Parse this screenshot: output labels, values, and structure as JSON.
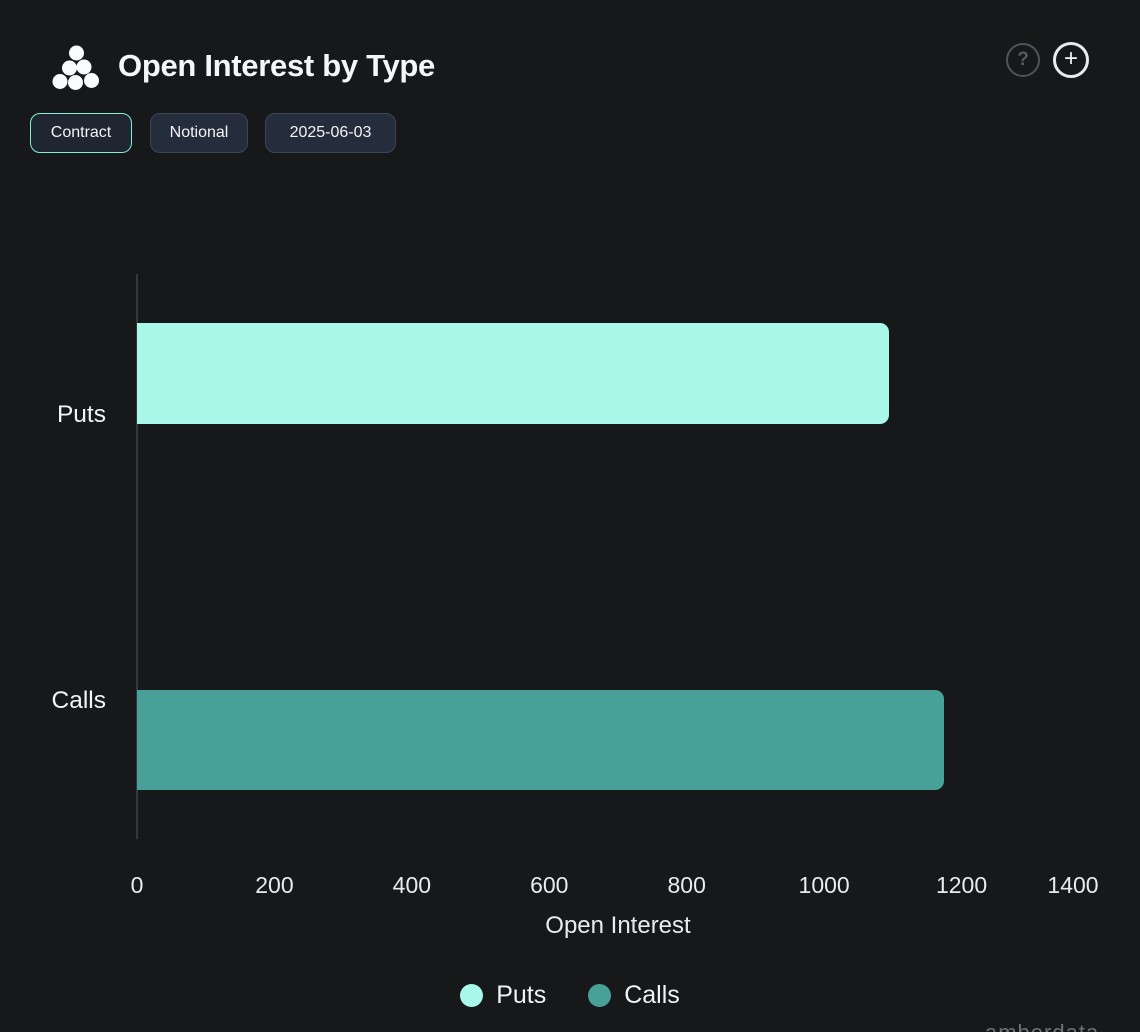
{
  "header": {
    "title": "Open Interest by Type",
    "help_label": "?",
    "add_label": "+"
  },
  "toolbar": {
    "buttons": [
      {
        "label": "Contract",
        "active": true
      },
      {
        "label": "Notional",
        "active": false
      },
      {
        "label": "2025-06-03",
        "active": false
      }
    ]
  },
  "chart_data": {
    "type": "bar",
    "orientation": "horizontal",
    "title": "Open Interest by Type",
    "categories": [
      "Puts",
      "Calls"
    ],
    "values": [
      1095,
      1174
    ],
    "colors": [
      "#A9F9EB",
      "#49A098"
    ],
    "xlabel": "Open Interest",
    "xlim": [
      0,
      1400
    ],
    "xticks": [
      0,
      200,
      400,
      600,
      800,
      1000,
      1200,
      1400
    ],
    "grid": false,
    "legend": {
      "position": "bottom",
      "items": [
        {
          "label": "Puts",
          "color": "#A9F9EB"
        },
        {
          "label": "Calls",
          "color": "#49A098"
        }
      ]
    }
  },
  "watermark": "amberdata",
  "colors": {
    "background": "#16181A",
    "accent": "#7FEED8",
    "puts": "#A9F9EB",
    "calls": "#49A098",
    "button_bg": "#252C3B",
    "button_border": "#3E4658",
    "axis_line": "#34373C",
    "text": "#F2F4F6"
  }
}
